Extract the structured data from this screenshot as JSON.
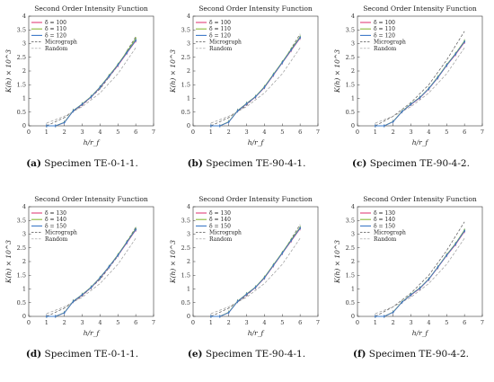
{
  "chart_data": [
    {
      "type": "line",
      "title": "Second Order Intensity Function",
      "xlabel": "h/r_f",
      "ylabel": "K(h) × 10^3",
      "xlim": [
        0,
        7
      ],
      "ylim": [
        0,
        4
      ],
      "xticks": [
        "0",
        "1",
        "2",
        "3",
        "4",
        "5",
        "6",
        "7"
      ],
      "yticks": [
        "0",
        "0.5",
        "1",
        "1.5",
        "2",
        "2.5",
        "3",
        "3.5",
        "4"
      ],
      "legend_position": "top-left",
      "caption_label": "(a)",
      "caption_text": "Specimen TE-0-1-1.",
      "series": [
        {
          "name": "δ = 100",
          "color": "#e0407a",
          "style": "solid",
          "markers": true,
          "x": [
            1,
            1.5,
            2,
            2.5,
            3,
            3.5,
            4,
            4.5,
            5,
            5.5,
            6
          ],
          "y": [
            0,
            0,
            0.12,
            0.55,
            0.78,
            1.05,
            1.4,
            1.8,
            2.2,
            2.65,
            3.1
          ]
        },
        {
          "name": "δ = 110",
          "color": "#8ab838",
          "style": "solid",
          "markers": true,
          "x": [
            1,
            1.5,
            2,
            2.5,
            3,
            3.5,
            4,
            4.5,
            5,
            5.5,
            6
          ],
          "y": [
            0,
            0,
            0.13,
            0.56,
            0.8,
            1.07,
            1.42,
            1.83,
            2.24,
            2.7,
            3.18
          ]
        },
        {
          "name": "δ = 120",
          "color": "#3a78c8",
          "style": "solid",
          "markers": true,
          "x": [
            1,
            1.5,
            2,
            2.5,
            3,
            3.5,
            4,
            4.5,
            5,
            5.5,
            6
          ],
          "y": [
            0,
            0,
            0.12,
            0.55,
            0.79,
            1.06,
            1.41,
            1.81,
            2.22,
            2.67,
            3.12
          ]
        },
        {
          "name": "Micrograph",
          "color": "#555555",
          "style": "dashed",
          "markers": false,
          "x": [
            1,
            2,
            3,
            4,
            5,
            6
          ],
          "y": [
            0,
            0.3,
            0.75,
            1.35,
            2.2,
            3.25
          ]
        },
        {
          "name": "Random",
          "color": "#999999",
          "style": "dashed",
          "markers": false,
          "x": [
            1,
            2,
            3,
            4,
            5,
            6
          ],
          "y": [
            0.1,
            0.35,
            0.7,
            1.2,
            1.9,
            2.85
          ]
        }
      ]
    },
    {
      "type": "line",
      "title": "Second Order Intensity Function",
      "xlabel": "h/r_f",
      "ylabel": "K(h) × 10^3",
      "xlim": [
        0,
        7
      ],
      "ylim": [
        0,
        4
      ],
      "xticks": [
        "0",
        "1",
        "2",
        "3",
        "4",
        "5",
        "6",
        "7"
      ],
      "yticks": [
        "0",
        "0.5",
        "1",
        "1.5",
        "2",
        "2.5",
        "3",
        "3.5",
        "4"
      ],
      "legend_position": "top-left",
      "caption_label": "(b)",
      "caption_text": "Specimen TE-90-4-1.",
      "series": [
        {
          "name": "δ = 100",
          "color": "#e0407a",
          "style": "solid",
          "markers": true,
          "x": [
            1,
            1.5,
            2,
            2.5,
            3,
            3.5,
            4,
            4.5,
            5,
            5.5,
            6
          ],
          "y": [
            0,
            0,
            0.14,
            0.55,
            0.8,
            1.05,
            1.4,
            1.85,
            2.3,
            2.75,
            3.2
          ]
        },
        {
          "name": "δ = 110",
          "color": "#8ab838",
          "style": "solid",
          "markers": true,
          "x": [
            1,
            1.5,
            2,
            2.5,
            3,
            3.5,
            4,
            4.5,
            5,
            5.5,
            6
          ],
          "y": [
            0,
            0,
            0.15,
            0.56,
            0.82,
            1.07,
            1.43,
            1.88,
            2.33,
            2.8,
            3.25
          ]
        },
        {
          "name": "δ = 120",
          "color": "#3a78c8",
          "style": "solid",
          "markers": true,
          "x": [
            1,
            1.5,
            2,
            2.5,
            3,
            3.5,
            4,
            4.5,
            5,
            5.5,
            6
          ],
          "y": [
            0,
            0,
            0.14,
            0.55,
            0.81,
            1.06,
            1.41,
            1.86,
            2.31,
            2.77,
            3.22
          ]
        },
        {
          "name": "Micrograph",
          "color": "#555555",
          "style": "dashed",
          "markers": false,
          "x": [
            1,
            2,
            3,
            4,
            5,
            6
          ],
          "y": [
            0,
            0.3,
            0.75,
            1.4,
            2.3,
            3.35
          ]
        },
        {
          "name": "Random",
          "color": "#999999",
          "style": "dashed",
          "markers": false,
          "x": [
            1,
            2,
            3,
            4,
            5,
            6
          ],
          "y": [
            0.1,
            0.35,
            0.7,
            1.2,
            1.9,
            2.85
          ]
        }
      ]
    },
    {
      "type": "line",
      "title": "Second Order Intensity Function",
      "xlabel": "h/r_f",
      "ylabel": "K(h) × 10^3",
      "xlim": [
        0,
        7
      ],
      "ylim": [
        0,
        4
      ],
      "xticks": [
        "0",
        "1",
        "2",
        "3",
        "4",
        "5",
        "6",
        "7"
      ],
      "yticks": [
        "0",
        "0.5",
        "1",
        "1.5",
        "2",
        "2.5",
        "3",
        "3.5",
        "4"
      ],
      "legend_position": "top-left",
      "caption_label": "(c)",
      "caption_text": "Specimen TE-90-4-2.",
      "series": [
        {
          "name": "δ = 100",
          "color": "#e0407a",
          "style": "solid",
          "markers": true,
          "x": [
            1,
            1.5,
            2,
            2.5,
            3,
            3.5,
            4,
            4.5,
            5,
            5.5,
            6
          ],
          "y": [
            0,
            0,
            0.15,
            0.52,
            0.78,
            1.02,
            1.35,
            1.75,
            2.2,
            2.6,
            3.05
          ]
        },
        {
          "name": "δ = 110",
          "color": "#8ab838",
          "style": "solid",
          "markers": true,
          "x": [
            1,
            1.5,
            2,
            2.5,
            3,
            3.5,
            4,
            4.5,
            5,
            5.5,
            6
          ],
          "y": [
            0,
            0,
            0.16,
            0.53,
            0.8,
            1.04,
            1.37,
            1.78,
            2.23,
            2.64,
            3.1
          ]
        },
        {
          "name": "δ = 120",
          "color": "#3a78c8",
          "style": "solid",
          "markers": true,
          "x": [
            1,
            1.5,
            2,
            2.5,
            3,
            3.5,
            4,
            4.5,
            5,
            5.5,
            6
          ],
          "y": [
            0,
            0,
            0.15,
            0.52,
            0.79,
            1.03,
            1.36,
            1.76,
            2.21,
            2.62,
            3.07
          ]
        },
        {
          "name": "Micrograph",
          "color": "#555555",
          "style": "dashed",
          "markers": false,
          "x": [
            1,
            2,
            3,
            4,
            5,
            6
          ],
          "y": [
            0,
            0.35,
            0.85,
            1.5,
            2.4,
            3.45
          ]
        },
        {
          "name": "Random",
          "color": "#999999",
          "style": "dashed",
          "markers": false,
          "x": [
            1,
            2,
            3,
            4,
            5,
            6
          ],
          "y": [
            0.1,
            0.35,
            0.7,
            1.2,
            1.9,
            2.85
          ]
        }
      ]
    },
    {
      "type": "line",
      "title": "Second Order Intensity Function",
      "xlabel": "h/r_f",
      "ylabel": "K(h) × 10^3",
      "xlim": [
        0,
        7
      ],
      "ylim": [
        0,
        4
      ],
      "xticks": [
        "0",
        "1",
        "2",
        "3",
        "4",
        "5",
        "6",
        "7"
      ],
      "yticks": [
        "0",
        "0.5",
        "1",
        "1.5",
        "2",
        "2.5",
        "3",
        "3.5",
        "4"
      ],
      "legend_position": "top-left",
      "caption_label": "(d)",
      "caption_text": "Specimen TE-0-1-1.",
      "series": [
        {
          "name": "δ = 130",
          "color": "#e0407a",
          "style": "solid",
          "markers": true,
          "x": [
            1,
            1.5,
            2,
            2.5,
            3,
            3.5,
            4,
            4.5,
            5,
            5.5,
            6
          ],
          "y": [
            0,
            0,
            0.13,
            0.55,
            0.78,
            1.05,
            1.4,
            1.8,
            2.22,
            2.68,
            3.15
          ]
        },
        {
          "name": "δ = 140",
          "color": "#8ab838",
          "style": "solid",
          "markers": true,
          "x": [
            1,
            1.5,
            2,
            2.5,
            3,
            3.5,
            4,
            4.5,
            5,
            5.5,
            6
          ],
          "y": [
            0,
            0,
            0.14,
            0.56,
            0.8,
            1.07,
            1.42,
            1.82,
            2.25,
            2.72,
            3.2
          ]
        },
        {
          "name": "δ = 150",
          "color": "#3a78c8",
          "style": "solid",
          "markers": true,
          "x": [
            1,
            1.5,
            2,
            2.5,
            3,
            3.5,
            4,
            4.5,
            5,
            5.5,
            6
          ],
          "y": [
            0,
            0,
            0.13,
            0.55,
            0.79,
            1.06,
            1.41,
            1.81,
            2.23,
            2.7,
            3.17
          ]
        },
        {
          "name": "Micrograph",
          "color": "#555555",
          "style": "dashed",
          "markers": false,
          "x": [
            1,
            2,
            3,
            4,
            5,
            6
          ],
          "y": [
            0,
            0.3,
            0.75,
            1.35,
            2.2,
            3.25
          ]
        },
        {
          "name": "Random",
          "color": "#999999",
          "style": "dashed",
          "markers": false,
          "x": [
            1,
            2,
            3,
            4,
            5,
            6
          ],
          "y": [
            0.1,
            0.35,
            0.7,
            1.2,
            1.9,
            2.85
          ]
        }
      ]
    },
    {
      "type": "line",
      "title": "Second Order Intensity Function",
      "xlabel": "h/r_f",
      "ylabel": "K(h) × 10^3",
      "xlim": [
        0,
        7
      ],
      "ylim": [
        0,
        4
      ],
      "xticks": [
        "0",
        "1",
        "2",
        "3",
        "4",
        "5",
        "6",
        "7"
      ],
      "yticks": [
        "0",
        "0.5",
        "1",
        "1.5",
        "2",
        "2.5",
        "3",
        "3.5",
        "4"
      ],
      "legend_position": "top-left",
      "caption_label": "(e)",
      "caption_text": "Specimen TE-90-4-1.",
      "series": [
        {
          "name": "δ = 130",
          "color": "#e0407a",
          "style": "solid",
          "markers": true,
          "x": [
            1,
            1.5,
            2,
            2.5,
            3,
            3.5,
            4,
            4.5,
            5,
            5.5,
            6
          ],
          "y": [
            0,
            0,
            0.14,
            0.55,
            0.8,
            1.05,
            1.4,
            1.85,
            2.3,
            2.75,
            3.2
          ]
        },
        {
          "name": "δ = 140",
          "color": "#8ab838",
          "style": "solid",
          "markers": true,
          "x": [
            1,
            1.5,
            2,
            2.5,
            3,
            3.5,
            4,
            4.5,
            5,
            5.5,
            6
          ],
          "y": [
            0,
            0,
            0.15,
            0.56,
            0.82,
            1.07,
            1.43,
            1.88,
            2.33,
            2.8,
            3.25
          ]
        },
        {
          "name": "δ = 150",
          "color": "#3a78c8",
          "style": "solid",
          "markers": true,
          "x": [
            1,
            1.5,
            2,
            2.5,
            3,
            3.5,
            4,
            4.5,
            5,
            5.5,
            6
          ],
          "y": [
            0,
            0,
            0.14,
            0.55,
            0.81,
            1.06,
            1.41,
            1.86,
            2.31,
            2.77,
            3.22
          ]
        },
        {
          "name": "Micrograph",
          "color": "#555555",
          "style": "dashed",
          "markers": false,
          "x": [
            1,
            2,
            3,
            4,
            5,
            6
          ],
          "y": [
            0,
            0.3,
            0.75,
            1.4,
            2.3,
            3.35
          ]
        },
        {
          "name": "Random",
          "color": "#999999",
          "style": "dashed",
          "markers": false,
          "x": [
            1,
            2,
            3,
            4,
            5,
            6
          ],
          "y": [
            0.1,
            0.35,
            0.7,
            1.2,
            1.9,
            2.85
          ]
        }
      ]
    },
    {
      "type": "line",
      "title": "Second Order Intensity Function",
      "xlabel": "h/r_f",
      "ylabel": "K(h) × 10^3",
      "xlim": [
        0,
        7
      ],
      "ylim": [
        0,
        4
      ],
      "xticks": [
        "0",
        "1",
        "2",
        "3",
        "4",
        "5",
        "6",
        "7"
      ],
      "yticks": [
        "0",
        "0.5",
        "1",
        "1.5",
        "2",
        "2.5",
        "3",
        "3.5",
        "4"
      ],
      "legend_position": "top-left",
      "caption_label": "(f)",
      "caption_text": "Specimen TE-90-4-2.",
      "series": [
        {
          "name": "δ = 130",
          "color": "#e0407a",
          "style": "solid",
          "markers": true,
          "x": [
            1,
            1.5,
            2,
            2.5,
            3,
            3.5,
            4,
            4.5,
            5,
            5.5,
            6
          ],
          "y": [
            0,
            0,
            0.15,
            0.52,
            0.78,
            1.02,
            1.35,
            1.78,
            2.22,
            2.62,
            3.1
          ]
        },
        {
          "name": "δ = 140",
          "color": "#8ab838",
          "style": "solid",
          "markers": true,
          "x": [
            1,
            1.5,
            2,
            2.5,
            3,
            3.5,
            4,
            4.5,
            5,
            5.5,
            6
          ],
          "y": [
            0,
            0,
            0.16,
            0.53,
            0.8,
            1.04,
            1.37,
            1.8,
            2.25,
            2.66,
            3.15
          ]
        },
        {
          "name": "δ = 150",
          "color": "#3a78c8",
          "style": "solid",
          "markers": true,
          "x": [
            1,
            1.5,
            2,
            2.5,
            3,
            3.5,
            4,
            4.5,
            5,
            5.5,
            6
          ],
          "y": [
            0,
            0,
            0.15,
            0.52,
            0.79,
            1.03,
            1.36,
            1.79,
            2.23,
            2.64,
            3.12
          ]
        },
        {
          "name": "Micrograph",
          "color": "#555555",
          "style": "dashed",
          "markers": false,
          "x": [
            1,
            2,
            3,
            4,
            5,
            6
          ],
          "y": [
            0,
            0.35,
            0.85,
            1.5,
            2.4,
            3.45
          ]
        },
        {
          "name": "Random",
          "color": "#999999",
          "style": "dashed",
          "markers": false,
          "x": [
            1,
            2,
            3,
            4,
            5,
            6
          ],
          "y": [
            0.1,
            0.35,
            0.7,
            1.2,
            1.9,
            2.85
          ]
        }
      ]
    }
  ]
}
